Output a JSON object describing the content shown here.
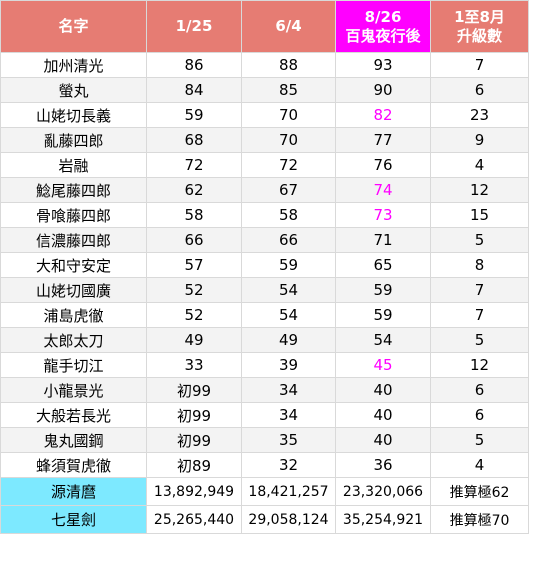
{
  "headers": {
    "name": "名字",
    "c1": "1/25",
    "c2": "6/4",
    "c3_line1": "8/26",
    "c3_line2": "百鬼夜行後",
    "c4_line1": "1至8月",
    "c4_line2": "升級數"
  },
  "colors": {
    "header_bg": "#e67c73",
    "header_highlight_bg": "#ff00ff",
    "highlight_text": "#ff00ff",
    "footer_name_bg": "#7de9ff"
  },
  "rows": [
    {
      "name": "加州清光",
      "c1": "86",
      "c2": "88",
      "c3": "93",
      "c4": "7",
      "c3_highlight": false
    },
    {
      "name": "螢丸",
      "c1": "84",
      "c2": "85",
      "c3": "90",
      "c4": "6",
      "c3_highlight": false
    },
    {
      "name": "山姥切長義",
      "c1": "59",
      "c2": "70",
      "c3": "82",
      "c4": "23",
      "c3_highlight": true
    },
    {
      "name": "亂藤四郎",
      "c1": "68",
      "c2": "70",
      "c3": "77",
      "c4": "9",
      "c3_highlight": false
    },
    {
      "name": "岩融",
      "c1": "72",
      "c2": "72",
      "c3": "76",
      "c4": "4",
      "c3_highlight": false
    },
    {
      "name": "鯰尾藤四郎",
      "c1": "62",
      "c2": "67",
      "c3": "74",
      "c4": "12",
      "c3_highlight": true
    },
    {
      "name": "骨喰藤四郎",
      "c1": "58",
      "c2": "58",
      "c3": "73",
      "c4": "15",
      "c3_highlight": true
    },
    {
      "name": "信濃藤四郎",
      "c1": "66",
      "c2": "66",
      "c3": "71",
      "c4": "5",
      "c3_highlight": false
    },
    {
      "name": "大和守安定",
      "c1": "57",
      "c2": "59",
      "c3": "65",
      "c4": "8",
      "c3_highlight": false
    },
    {
      "name": "山姥切國廣",
      "c1": "52",
      "c2": "54",
      "c3": "59",
      "c4": "7",
      "c3_highlight": false
    },
    {
      "name": "浦島虎徹",
      "c1": "52",
      "c2": "54",
      "c3": "59",
      "c4": "7",
      "c3_highlight": false
    },
    {
      "name": "太郎太刀",
      "c1": "49",
      "c2": "49",
      "c3": "54",
      "c4": "5",
      "c3_highlight": false
    },
    {
      "name": "龍手切江",
      "c1": "33",
      "c2": "39",
      "c3": "45",
      "c4": "12",
      "c3_highlight": true
    },
    {
      "name": "小龍景光",
      "c1": "初99",
      "c2": "34",
      "c3": "40",
      "c4": "6",
      "c3_highlight": false
    },
    {
      "name": "大般若長光",
      "c1": "初99",
      "c2": "34",
      "c3": "40",
      "c4": "6",
      "c3_highlight": false
    },
    {
      "name": "鬼丸國鋼",
      "c1": "初99",
      "c2": "35",
      "c3": "40",
      "c4": "5",
      "c3_highlight": false
    },
    {
      "name": "蜂須賀虎徹",
      "c1": "初89",
      "c2": "32",
      "c3": "36",
      "c4": "4",
      "c3_highlight": false
    }
  ],
  "footer_rows": [
    {
      "name": "源清麿",
      "c1": "13,892,949",
      "c2": "18,421,257",
      "c3": "23,320,066",
      "c4": "推算極62"
    },
    {
      "name": "七星劍",
      "c1": "25,265,440",
      "c2": "29,058,124",
      "c3": "35,254,921",
      "c4": "推算極70"
    }
  ]
}
